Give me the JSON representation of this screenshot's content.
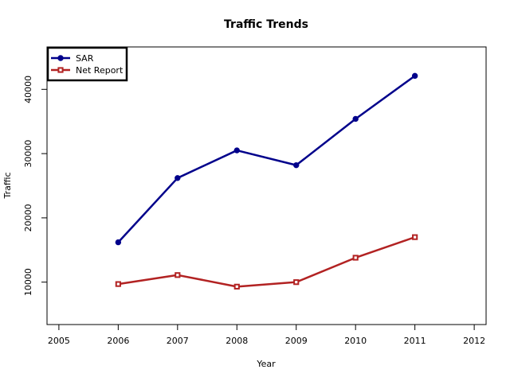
{
  "chart_data": {
    "type": "line",
    "title": "Traffic Trends",
    "xlabel": "Year",
    "ylabel": "Traffic",
    "xlim": [
      2004.8,
      2012.2
    ],
    "ylim": [
      3400,
      46600
    ],
    "x_ticks": [
      2005,
      2006,
      2007,
      2008,
      2009,
      2010,
      2011,
      2012
    ],
    "y_ticks": [
      10000,
      20000,
      30000,
      40000
    ],
    "grid": false,
    "legend_position": "top-left",
    "series": [
      {
        "name": "SAR",
        "color": "#00008B",
        "marker": "filled-circle",
        "x": [
          2006,
          2007,
          2008,
          2009,
          2010,
          2011
        ],
        "values": [
          16200,
          26200,
          30500,
          28200,
          35400,
          42100
        ]
      },
      {
        "name": "Net Report",
        "color": "#B22222",
        "marker": "open-square",
        "x": [
          2006,
          2007,
          2008,
          2009,
          2010,
          2011
        ],
        "values": [
          9700,
          11100,
          9300,
          10000,
          13800,
          17000
        ]
      }
    ]
  }
}
